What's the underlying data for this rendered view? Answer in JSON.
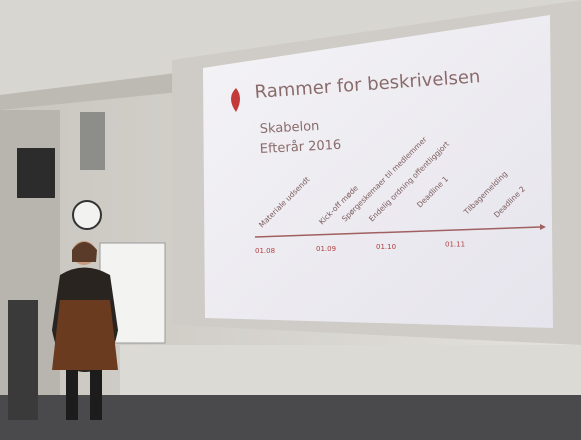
{
  "slide": {
    "title": "Rammer for beskrivelsen",
    "bullets": [
      "Skabelon",
      "Efterår 2016"
    ],
    "timeline": {
      "events": [
        "Materiale udsendt",
        "Kick-off møde",
        "Spørgeskemaer til medlemmer",
        "Endelig ordning offentliggjort",
        "Deadline 1",
        "Tilbagemelding",
        "Deadline 2"
      ],
      "dates": [
        "01.08",
        "01.09",
        "01.10",
        "01.11"
      ]
    }
  }
}
